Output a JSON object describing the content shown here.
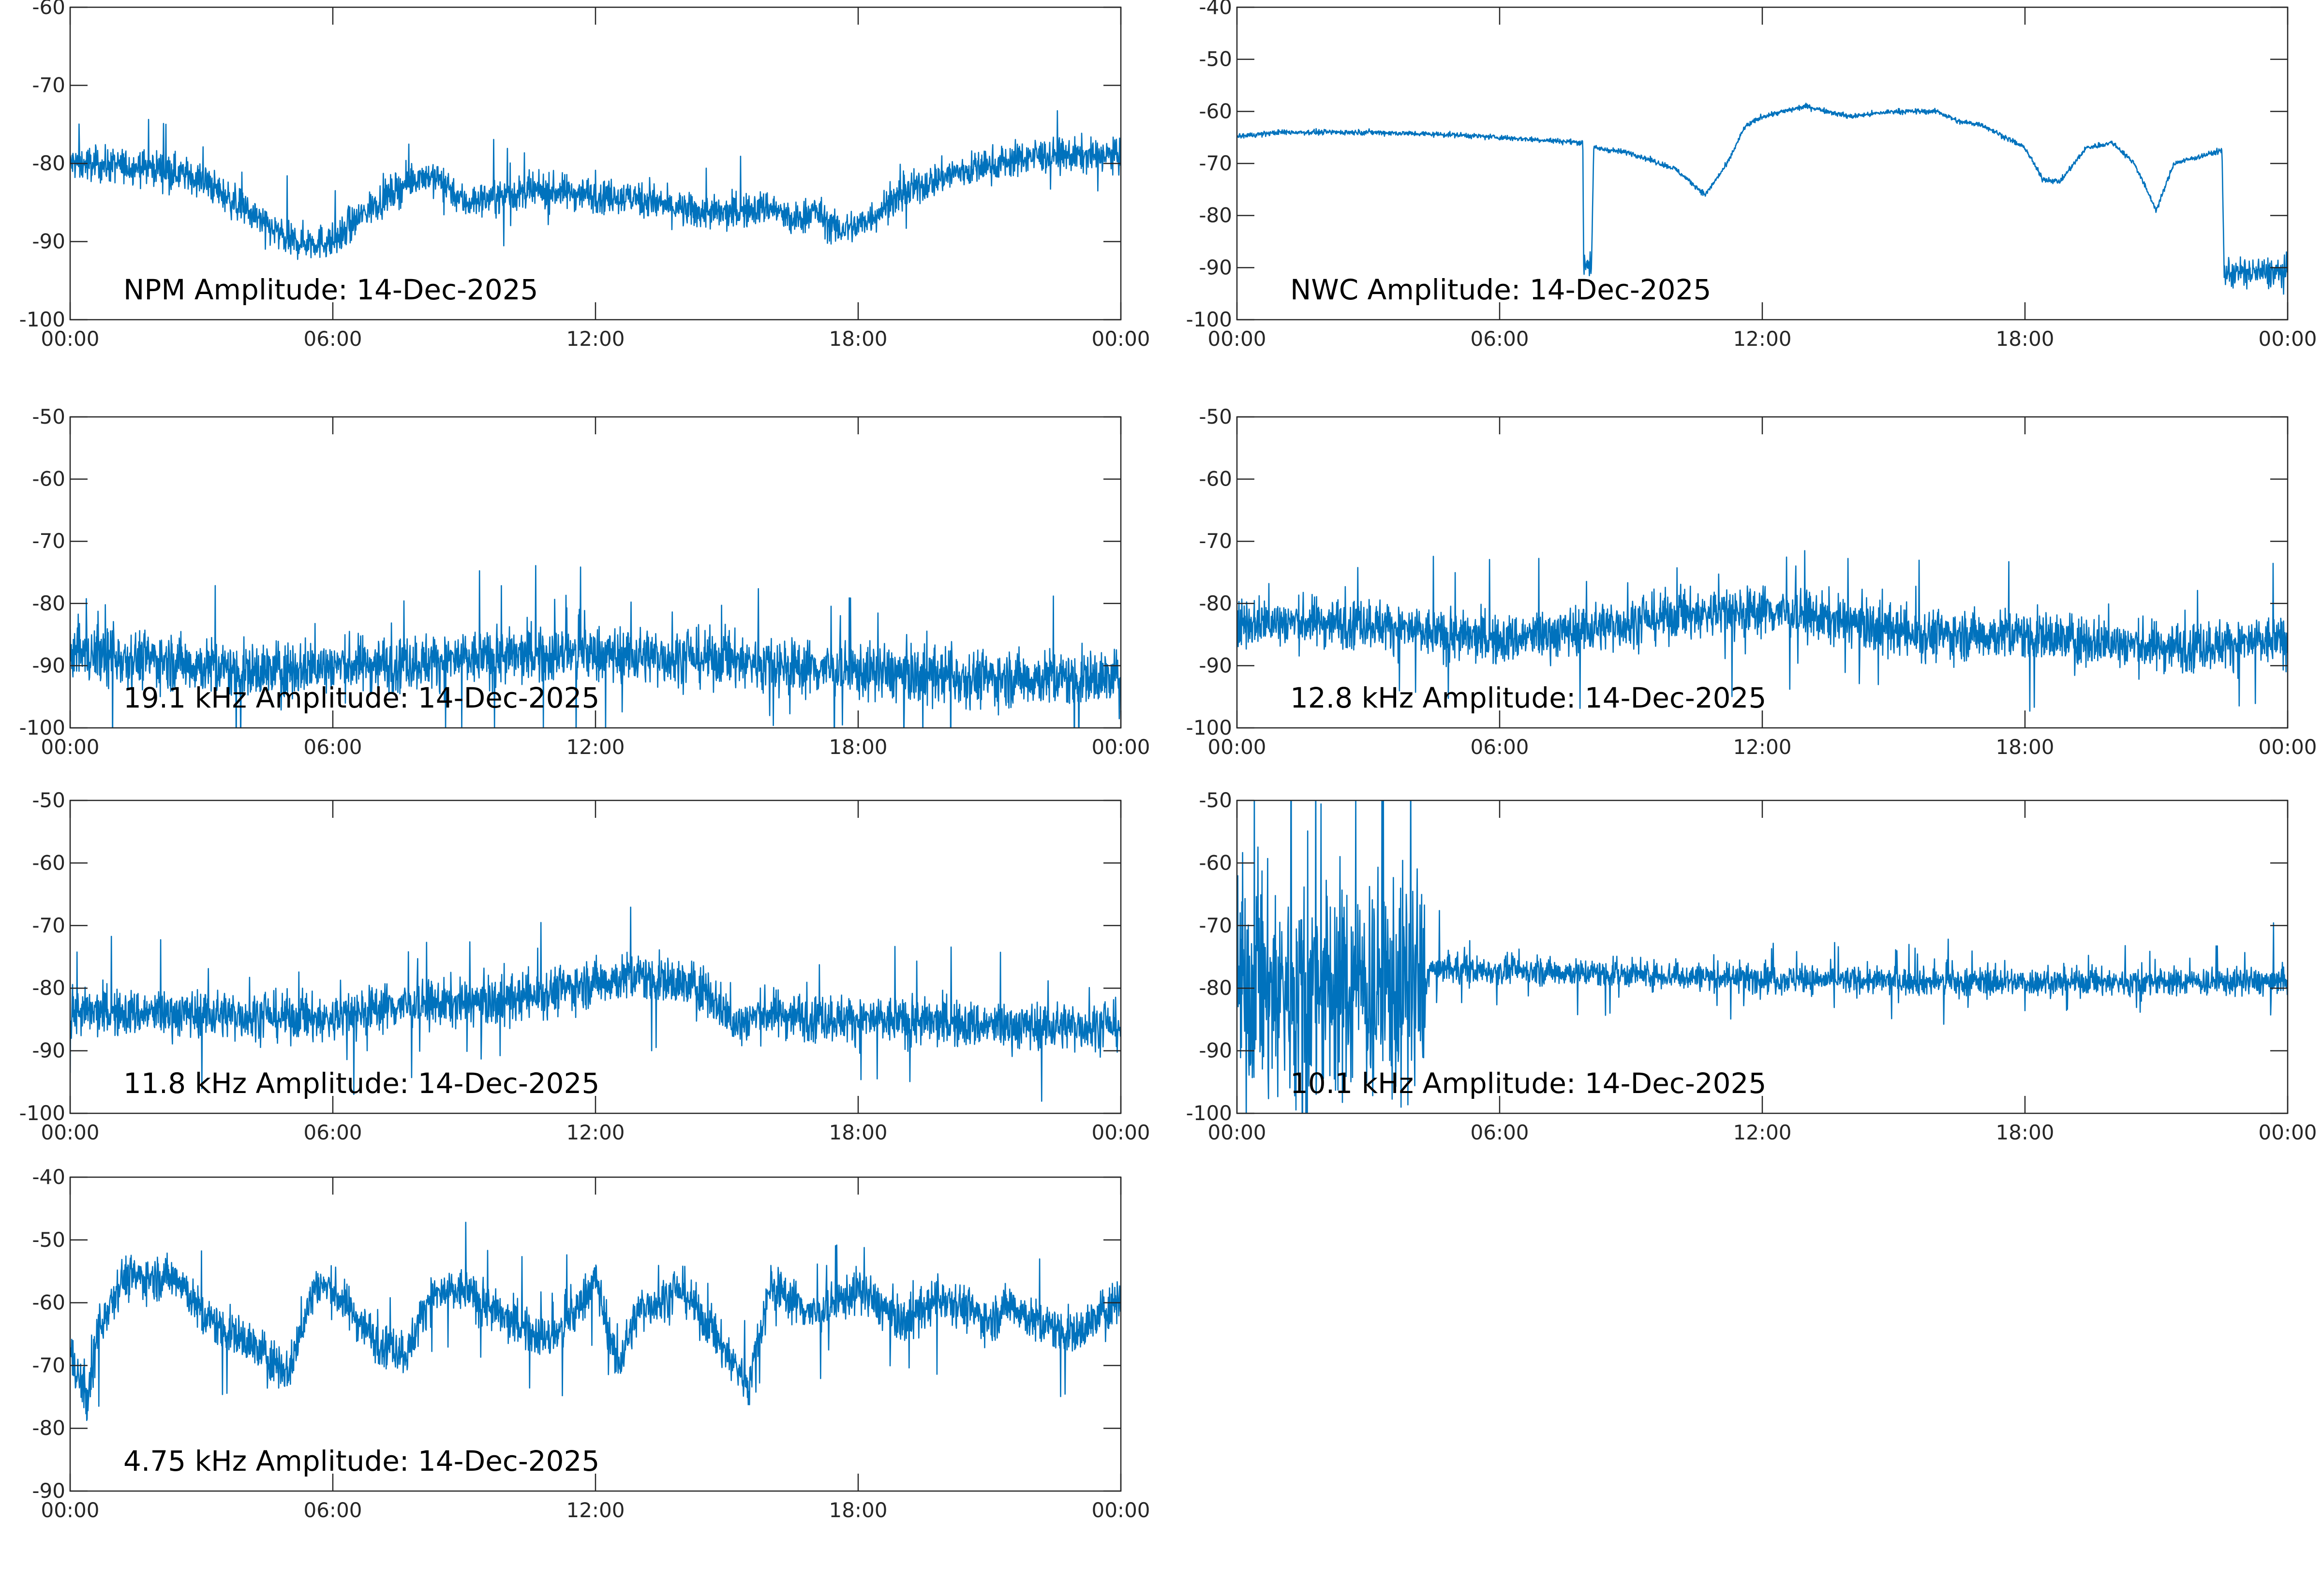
{
  "colors": {
    "trace": "#0072bd",
    "axis": "#262626",
    "background": "#ffffff"
  },
  "chart_data": [
    {
      "type": "line",
      "title": "NPM Amplitude: 14-Dec-2025",
      "xlim": [
        0,
        24
      ],
      "ylim": [
        -100,
        -60
      ],
      "xticks": [
        "00:00",
        "06:00",
        "12:00",
        "18:00",
        "00:00"
      ],
      "yticks": [
        -60,
        -70,
        -80,
        -90,
        -100
      ],
      "envelope_hours": [
        0,
        2,
        3,
        4,
        5,
        6,
        7,
        8,
        8.5,
        9,
        10,
        11,
        12,
        13,
        14,
        15,
        16,
        16.5,
        17,
        17.5,
        18,
        19,
        20,
        22,
        24
      ],
      "envelope_db": [
        -80,
        -80.5,
        -82,
        -86,
        -90,
        -90,
        -85,
        -81.5,
        -82,
        -85,
        -84,
        -83.5,
        -84,
        -84.5,
        -86,
        -86.5,
        -85.5,
        -87.5,
        -86,
        -88.5,
        -88,
        -84,
        -81.5,
        -79,
        -79
      ],
      "noise_db": 2.2,
      "spike_rate": 0.01
    },
    {
      "type": "line",
      "title": "NWC Amplitude: 14-Dec-2025",
      "xlim": [
        0,
        24
      ],
      "ylim": [
        -100,
        -40
      ],
      "xticks": [
        "00:00",
        "06:00",
        "12:00",
        "18:00",
        "00:00"
      ],
      "yticks": [
        -40,
        -50,
        -60,
        -70,
        -80,
        -90,
        -100
      ],
      "envelope_hours": [
        0,
        1,
        3,
        5,
        6,
        7,
        7.9,
        7.92,
        8.1,
        8.15,
        9,
        10,
        10.7,
        11.2,
        11.6,
        12,
        13,
        14,
        14.5,
        15,
        16,
        16.5,
        17,
        18,
        18.4,
        18.8,
        19.4,
        20,
        20.5,
        21,
        21.4,
        22.5,
        22.55,
        24
      ],
      "envelope_db": [
        -64.8,
        -64,
        -64,
        -64.5,
        -65,
        -65.5,
        -66,
        -89,
        -89,
        -67,
        -68,
        -71,
        -76,
        -70,
        -63,
        -61,
        -59,
        -61,
        -60.5,
        -60,
        -60,
        -62,
        -62.5,
        -67,
        -73,
        -73.5,
        -67,
        -66,
        -70,
        -79,
        -70,
        -67.5,
        -91,
        -91
      ],
      "noise_db": 0.5,
      "noisy_segments_hours": [
        [
          7.92,
          8.1,
          3
        ],
        [
          22.55,
          24,
          3
        ]
      ]
    },
    {
      "type": "line",
      "title": "19.1 kHz Amplitude: 14-Dec-2025",
      "xlim": [
        0,
        24
      ],
      "ylim": [
        -100,
        -50
      ],
      "xticks": [
        "00:00",
        "06:00",
        "12:00",
        "18:00",
        "00:00"
      ],
      "yticks": [
        -50,
        -60,
        -70,
        -80,
        -90,
        -100
      ],
      "envelope_hours": [
        0,
        2,
        4,
        6,
        9,
        12,
        15,
        18,
        21,
        24
      ],
      "envelope_db": [
        -88,
        -89,
        -91,
        -90,
        -89,
        -88,
        -89,
        -91,
        -92,
        -92
      ],
      "noise_db": 4.5,
      "spike_rate": 0.02
    },
    {
      "type": "line",
      "title": "12.8 kHz Amplitude: 14-Dec-2025",
      "xlim": [
        0,
        24
      ],
      "ylim": [
        -100,
        -50
      ],
      "xticks": [
        "00:00",
        "06:00",
        "12:00",
        "18:00",
        "00:00"
      ],
      "yticks": [
        -50,
        -60,
        -70,
        -80,
        -90,
        -100
      ],
      "envelope_hours": [
        0,
        3,
        4.5,
        6,
        8,
        10,
        12,
        14,
        15.5,
        18,
        21,
        24
      ],
      "envelope_db": [
        -83,
        -83,
        -85,
        -86,
        -84,
        -82,
        -81,
        -83,
        -85,
        -85,
        -87,
        -86
      ],
      "noise_db": 4.0,
      "spike_rate": 0.015
    },
    {
      "type": "line",
      "title": "11.8 kHz Amplitude: 14-Dec-2025",
      "xlim": [
        0,
        24
      ],
      "ylim": [
        -100,
        -50
      ],
      "xticks": [
        "00:00",
        "06:00",
        "12:00",
        "18:00",
        "00:00"
      ],
      "yticks": [
        -50,
        -60,
        -70,
        -80,
        -90,
        -100
      ],
      "envelope_hours": [
        0,
        3,
        6,
        7,
        10,
        12,
        13,
        14.5,
        15.2,
        15.8,
        18,
        21,
        24
      ],
      "envelope_db": [
        -84,
        -84,
        -85,
        -83,
        -82,
        -79,
        -78,
        -80,
        -86,
        -84,
        -85,
        -86,
        -86
      ],
      "noise_db": 3.8,
      "spike_rate": 0.015
    },
    {
      "type": "line",
      "title": "10.1 kHz Amplitude: 14-Dec-2025",
      "xlim": [
        0,
        24
      ],
      "ylim": [
        -100,
        -50
      ],
      "xticks": [
        "00:00",
        "06:00",
        "12:00",
        "18:00",
        "00:00"
      ],
      "yticks": [
        -50,
        -60,
        -70,
        -80,
        -90,
        -100
      ],
      "envelope_hours": [
        0,
        4.3,
        4.4,
        8,
        12,
        16,
        20,
        22,
        24
      ],
      "envelope_db": [
        -80,
        -80,
        -77,
        -77.5,
        -78.5,
        -79,
        -79,
        -79,
        -79
      ],
      "noise_db": 2.2,
      "spike_rate": 0.03,
      "noisy_segments_hours": [
        [
          0,
          4.3,
          18
        ]
      ]
    },
    {
      "type": "line",
      "title": "4.75 kHz Amplitude: 14-Dec-2025",
      "xlim": [
        0,
        24
      ],
      "ylim": [
        -90,
        -40
      ],
      "xticks": [
        "00:00",
        "06:00",
        "12:00",
        "18:00",
        "00:00"
      ],
      "yticks": [
        -40,
        -50,
        -60,
        -70,
        -80,
        -90
      ],
      "envelope_hours": [
        0,
        0.4,
        0.6,
        0.9,
        1.2,
        2.5,
        3,
        4,
        5,
        5.3,
        5.6,
        6,
        7,
        7.7,
        8.2,
        9,
        10,
        11,
        11.5,
        12,
        12.5,
        13,
        14,
        15,
        15.5,
        16,
        17,
        18,
        19,
        20,
        21,
        21.5,
        22,
        23,
        24
      ],
      "envelope_db": [
        -68,
        -76,
        -66,
        -60,
        -56,
        -56,
        -62,
        -66,
        -71,
        -64,
        -57,
        -58,
        -66,
        -68,
        -59,
        -58,
        -63,
        -66,
        -62,
        -56,
        -70,
        -61,
        -58,
        -68,
        -73,
        -57,
        -62,
        -58,
        -63,
        -59,
        -63,
        -60,
        -63,
        -65,
        -59
      ],
      "noise_db": 3.5,
      "spike_rate": 0.02
    }
  ]
}
